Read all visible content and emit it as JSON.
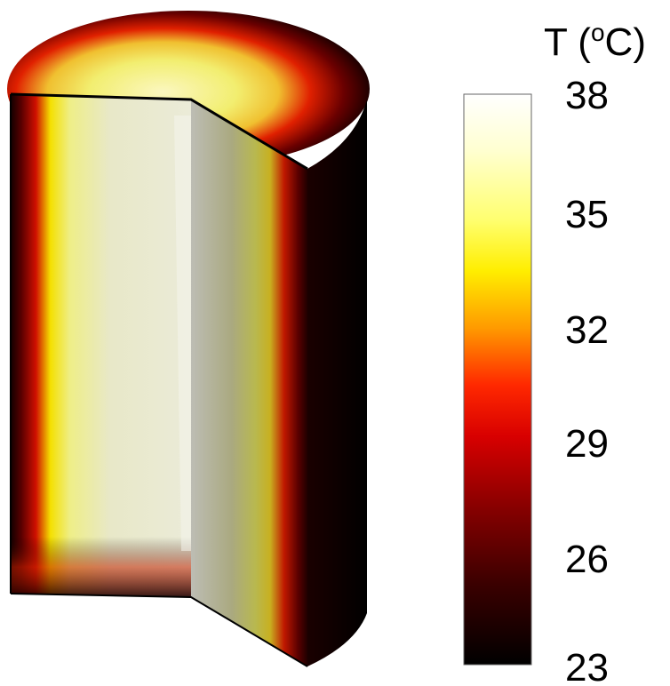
{
  "figure": {
    "colorbar": {
      "title_symbol": "T (",
      "title_unit_sup": "o",
      "title_unit_tail": "C)",
      "ticks": [
        "38",
        "35",
        "32",
        "29",
        "26",
        "23"
      ],
      "range": [
        23,
        38
      ],
      "colormap": "hot (black-red-yellow-white)",
      "colors": {
        "stops": [
          "#000000",
          "#3a0000",
          "#8a0000",
          "#e00000",
          "#ff2a00",
          "#ff9400",
          "#ffe600",
          "#ffff4a",
          "#ffffb8",
          "#ffffff"
        ]
      }
    },
    "model": {
      "description": "cutaway cylinder temperature field",
      "max_temperature": 38,
      "surface_temperature": 23
    }
  }
}
